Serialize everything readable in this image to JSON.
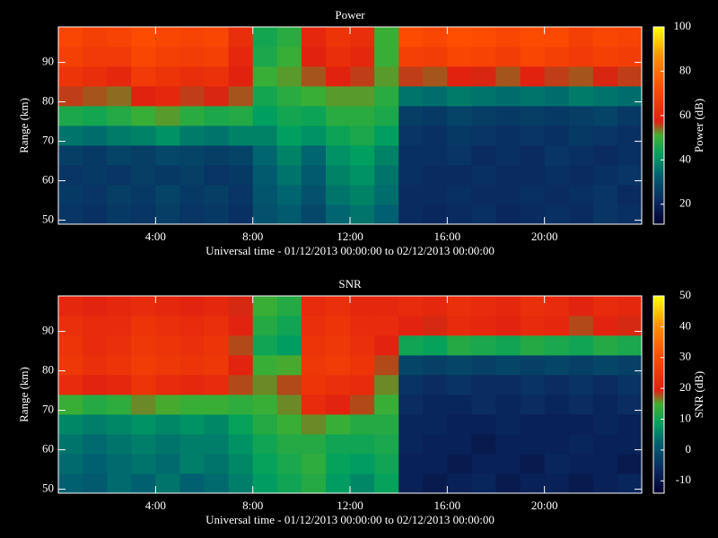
{
  "chart_data": [
    {
      "type": "heatmap",
      "title": "Power",
      "xlabel": "Universal time - 01/12/2013 00:00:00 to 02/12/2013 00:00:00",
      "ylabel": "Range (km)",
      "colorbar_label": "Power (dB)",
      "x": [
        0,
        1,
        2,
        3,
        4,
        5,
        6,
        7,
        8,
        9,
        10,
        11,
        12,
        13,
        14,
        15,
        16,
        17,
        18,
        19,
        20,
        21,
        22,
        23,
        24
      ],
      "y": [
        49,
        54,
        59,
        64,
        69,
        74,
        79,
        84,
        89,
        94,
        99
      ],
      "xlim": [
        0,
        24
      ],
      "ylim": [
        49,
        99
      ],
      "zlim": [
        11,
        100
      ],
      "xticks": [
        {
          "value": 4,
          "label": "4:00"
        },
        {
          "value": 8,
          "label": "8:00"
        },
        {
          "value": 12,
          "label": "12:00"
        },
        {
          "value": 16,
          "label": "16:00"
        },
        {
          "value": 20,
          "label": "20:00"
        }
      ],
      "yticks": [
        50,
        60,
        70,
        80,
        90
      ],
      "zticks": [
        20,
        40,
        60,
        80,
        100
      ],
      "colorscale": [
        [
          0,
          "#000030"
        ],
        [
          0.12,
          "#0a2a60"
        ],
        [
          0.25,
          "#006070"
        ],
        [
          0.35,
          "#00a060"
        ],
        [
          0.45,
          "#40b030"
        ],
        [
          0.52,
          "#e02010"
        ],
        [
          0.7,
          "#ff5000"
        ],
        [
          0.85,
          "#ff9000"
        ],
        [
          1,
          "#ffff00"
        ]
      ],
      "z": [
        [
          24,
          23,
          25,
          24,
          26,
          24,
          25,
          23,
          30,
          32,
          28,
          34,
          36,
          33,
          22,
          21,
          22,
          23,
          21,
          22,
          23,
          22,
          24,
          23
        ],
        [
          25,
          24,
          26,
          25,
          27,
          25,
          26,
          24,
          31,
          34,
          30,
          36,
          38,
          35,
          22,
          22,
          23,
          22,
          22,
          23,
          22,
          23,
          24,
          22
        ],
        [
          24,
          25,
          24,
          26,
          25,
          26,
          24,
          25,
          32,
          36,
          32,
          38,
          40,
          36,
          23,
          22,
          22,
          23,
          22,
          22,
          23,
          22,
          23,
          24
        ],
        [
          26,
          25,
          27,
          26,
          28,
          27,
          26,
          27,
          34,
          38,
          34,
          40,
          42,
          38,
          23,
          23,
          24,
          22,
          23,
          22,
          24,
          23,
          22,
          23
        ],
        [
          36,
          35,
          37,
          38,
          40,
          37,
          36,
          38,
          38,
          42,
          40,
          44,
          46,
          42,
          24,
          23,
          25,
          24,
          23,
          24,
          23,
          25,
          24,
          23
        ],
        [
          46,
          45,
          47,
          50,
          52,
          48,
          46,
          47,
          42,
          45,
          44,
          48,
          48,
          46,
          26,
          25,
          27,
          26,
          25,
          26,
          25,
          26,
          27,
          25
        ],
        [
          56,
          55,
          54,
          58,
          60,
          56,
          57,
          55,
          45,
          48,
          50,
          52,
          52,
          48,
          36,
          35,
          37,
          36,
          35,
          36,
          35,
          37,
          36,
          35
        ],
        [
          64,
          62,
          60,
          66,
          64,
          62,
          63,
          58,
          50,
          52,
          55,
          58,
          56,
          52,
          56,
          55,
          58,
          57,
          55,
          58,
          56,
          55,
          57,
          56
        ],
        [
          68,
          66,
          66,
          70,
          68,
          67,
          68,
          60,
          46,
          50,
          58,
          62,
          60,
          50,
          68,
          67,
          70,
          69,
          67,
          70,
          68,
          66,
          68,
          67
        ],
        [
          70,
          68,
          69,
          72,
          70,
          69,
          70,
          62,
          45,
          48,
          60,
          64,
          62,
          50,
          72,
          70,
          73,
          72,
          70,
          72,
          71,
          68,
          70,
          69
        ]
      ]
    },
    {
      "type": "heatmap",
      "title": "SNR",
      "xlabel": "Universal time - 01/12/2013 00:00:00 to 02/12/2013 00:00:00",
      "ylabel": "Range (km)",
      "colorbar_label": "SNR (dB)",
      "x": [
        0,
        1,
        2,
        3,
        4,
        5,
        6,
        7,
        8,
        9,
        10,
        11,
        12,
        13,
        14,
        15,
        16,
        17,
        18,
        19,
        20,
        21,
        22,
        23,
        24
      ],
      "y": [
        49,
        54,
        59,
        64,
        69,
        74,
        79,
        84,
        89,
        94,
        99
      ],
      "xlim": [
        0,
        24
      ],
      "ylim": [
        49,
        99
      ],
      "zlim": [
        -14,
        50
      ],
      "xticks": [
        {
          "value": 4,
          "label": "4:00"
        },
        {
          "value": 8,
          "label": "8:00"
        },
        {
          "value": 12,
          "label": "12:00"
        },
        {
          "value": 16,
          "label": "16:00"
        },
        {
          "value": 20,
          "label": "20:00"
        }
      ],
      "yticks": [
        50,
        60,
        70,
        80,
        90
      ],
      "zticks": [
        -10,
        0,
        10,
        20,
        30,
        40,
        50
      ],
      "colorscale": [
        [
          0,
          "#000030"
        ],
        [
          0.12,
          "#0a2a60"
        ],
        [
          0.25,
          "#006070"
        ],
        [
          0.35,
          "#00a060"
        ],
        [
          0.45,
          "#40b030"
        ],
        [
          0.52,
          "#e02010"
        ],
        [
          0.7,
          "#ff5000"
        ],
        [
          0.85,
          "#ff9000"
        ],
        [
          1,
          "#ffff00"
        ]
      ],
      "z": [
        [
          2,
          1,
          3,
          2,
          4,
          2,
          3,
          5,
          8,
          10,
          12,
          8,
          6,
          9,
          -8,
          -9,
          -8,
          -7,
          -9,
          -8,
          -8,
          -9,
          -8,
          -7
        ],
        [
          3,
          2,
          3,
          4,
          3,
          5,
          4,
          6,
          9,
          11,
          13,
          9,
          8,
          10,
          -8,
          -8,
          -9,
          -8,
          -8,
          -9,
          -7,
          -8,
          -8,
          -9
        ],
        [
          4,
          3,
          4,
          5,
          4,
          5,
          5,
          7,
          10,
          12,
          12,
          10,
          10,
          11,
          -7,
          -8,
          -8,
          -9,
          -8,
          -8,
          -8,
          -7,
          -8,
          -8
        ],
        [
          6,
          5,
          6,
          7,
          6,
          7,
          6,
          9,
          12,
          14,
          16,
          14,
          12,
          12,
          -7,
          -7,
          -8,
          -8,
          -7,
          -8,
          -8,
          -8,
          -7,
          -8
        ],
        [
          14,
          12,
          13,
          16,
          15,
          14,
          14,
          13,
          14,
          16,
          22,
          20,
          18,
          14,
          -6,
          -7,
          -7,
          -6,
          -7,
          -6,
          -7,
          -6,
          -7,
          -6
        ],
        [
          22,
          20,
          21,
          24,
          22,
          21,
          22,
          18,
          16,
          18,
          24,
          23,
          22,
          16,
          -5,
          -6,
          -5,
          -6,
          -6,
          -5,
          -6,
          -5,
          -6,
          -5
        ],
        [
          25,
          23,
          24,
          26,
          25,
          24,
          25,
          20,
          14,
          15,
          25,
          26,
          24,
          18,
          -2,
          -3,
          -2,
          -3,
          -2,
          -3,
          -2,
          -3,
          -2,
          -3
        ],
        [
          24,
          22,
          23,
          25,
          24,
          23,
          24,
          18,
          10,
          8,
          24,
          25,
          23,
          20,
          10,
          9,
          12,
          11,
          10,
          12,
          11,
          10,
          12,
          11
        ],
        [
          23,
          22,
          22,
          24,
          23,
          22,
          23,
          20,
          12,
          10,
          23,
          24,
          22,
          22,
          20,
          19,
          22,
          21,
          20,
          22,
          21,
          18,
          20,
          19
        ],
        [
          21,
          20,
          21,
          22,
          21,
          20,
          21,
          19,
          14,
          12,
          22,
          23,
          21,
          21,
          22,
          21,
          23,
          22,
          21,
          23,
          22,
          20,
          22,
          21
        ]
      ]
    }
  ]
}
